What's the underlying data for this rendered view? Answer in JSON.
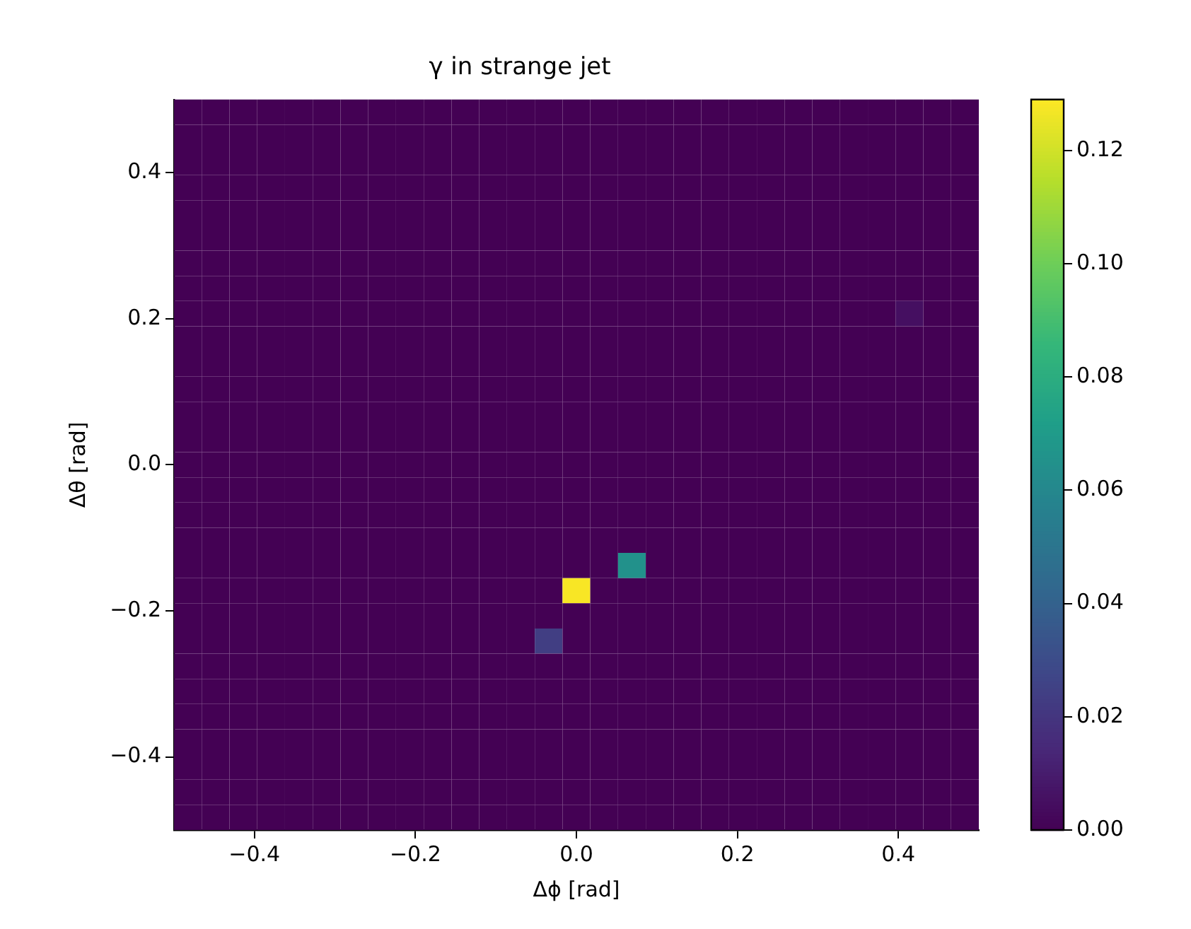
{
  "chart_data": {
    "type": "heatmap",
    "title": "γ in strange jet",
    "xlabel": "Δϕ [rad]",
    "ylabel": "Δθ [rad]",
    "xlim": [
      -0.5,
      0.5
    ],
    "ylim": [
      -0.5,
      0.5
    ],
    "xticks": [
      {
        "value": -0.4,
        "label": "−0.4"
      },
      {
        "value": -0.2,
        "label": "−0.2"
      },
      {
        "value": 0,
        "label": "0.0"
      },
      {
        "value": 0.2,
        "label": "0.2"
      },
      {
        "value": 0.4,
        "label": "0.4"
      }
    ],
    "yticks": [
      {
        "value": -0.4,
        "label": "−0.4"
      },
      {
        "value": -0.2,
        "label": "−0.2"
      },
      {
        "value": 0,
        "label": "0.0"
      },
      {
        "value": 0.2,
        "label": "0.2"
      },
      {
        "value": 0.4,
        "label": "0.4"
      }
    ],
    "clim": [
      0,
      0.129
    ],
    "cticks": [
      {
        "value": 0,
        "label": "0.00"
      },
      {
        "value": 0.02,
        "label": "0.02"
      },
      {
        "value": 0.04,
        "label": "0.04"
      },
      {
        "value": 0.06,
        "label": "0.06"
      },
      {
        "value": 0.08,
        "label": "0.08"
      },
      {
        "value": 0.1,
        "label": "0.10"
      },
      {
        "value": 0.12,
        "label": "0.12"
      }
    ],
    "cells": [
      [
        0,
        0,
        0,
        0,
        0,
        0,
        0,
        0,
        0,
        0,
        0,
        0,
        0,
        0,
        0,
        0,
        0,
        0,
        0,
        0,
        0,
        0,
        0,
        0,
        0,
        0,
        0,
        0,
        0
      ],
      [
        0,
        0,
        0,
        0,
        0,
        0,
        0,
        0,
        0,
        0,
        0,
        0,
        0,
        0,
        0,
        0,
        0,
        0,
        0,
        0,
        0,
        0,
        0,
        0,
        0,
        0,
        0,
        0,
        0
      ],
      [
        0,
        0,
        0,
        0,
        0,
        0,
        0,
        0,
        0,
        0,
        0,
        0,
        0,
        0,
        0,
        0,
        0,
        0,
        0,
        0,
        0,
        0,
        0,
        0,
        0,
        0,
        0,
        0,
        0
      ],
      [
        0,
        0,
        0,
        0,
        0,
        0,
        0,
        0,
        0,
        0,
        0,
        0,
        0,
        0,
        0,
        0,
        0,
        0,
        0,
        0,
        0,
        0,
        0,
        0,
        0,
        0,
        0,
        0,
        0
      ],
      [
        0,
        0,
        0,
        0,
        0,
        0,
        0,
        0,
        0,
        0,
        0,
        0,
        0,
        0,
        0,
        0,
        0,
        0,
        0,
        0,
        0,
        0,
        0,
        0,
        0,
        0,
        0,
        0,
        0
      ],
      [
        0,
        0,
        0,
        0,
        0,
        0,
        0,
        0,
        0,
        0,
        0,
        0,
        0,
        0,
        0,
        0,
        0,
        0,
        0,
        0,
        0,
        0,
        0,
        0,
        0,
        0,
        0,
        0,
        0
      ],
      [
        0,
        0,
        0,
        0,
        0,
        0,
        0,
        0,
        0,
        0,
        0,
        0,
        0,
        0,
        0,
        0,
        0,
        0,
        0,
        0,
        0,
        0,
        0,
        0,
        0,
        0,
        0,
        0,
        0
      ],
      [
        0,
        0,
        0,
        0,
        0,
        0,
        0,
        0,
        0,
        0,
        0,
        0,
        0,
        0,
        0,
        0,
        0,
        0,
        0,
        0,
        0,
        0,
        0,
        0,
        0,
        0,
        0,
        0,
        0
      ],
      [
        0,
        0,
        0,
        0,
        0,
        0,
        0,
        0,
        0,
        0,
        0,
        0,
        0,
        0,
        0,
        0,
        0,
        0,
        0,
        0,
        0,
        0,
        0,
        0,
        0,
        0,
        0.005,
        0,
        0
      ],
      [
        0,
        0,
        0,
        0,
        0,
        0,
        0,
        0,
        0,
        0,
        0,
        0,
        0,
        0,
        0,
        0,
        0,
        0,
        0,
        0,
        0,
        0,
        0,
        0,
        0,
        0,
        0,
        0,
        0
      ],
      [
        0,
        0,
        0,
        0,
        0,
        0,
        0,
        0,
        0,
        0,
        0,
        0,
        0,
        0,
        0,
        0,
        0,
        0,
        0,
        0,
        0,
        0,
        0,
        0,
        0,
        0,
        0,
        0,
        0
      ],
      [
        0,
        0,
        0,
        0,
        0,
        0,
        0,
        0,
        0,
        0,
        0,
        0,
        0,
        0,
        0,
        0,
        0,
        0,
        0,
        0,
        0,
        0,
        0,
        0,
        0,
        0,
        0,
        0,
        0
      ],
      [
        0,
        0,
        0,
        0,
        0,
        0,
        0,
        0,
        0,
        0,
        0,
        0,
        0,
        0,
        0,
        0,
        0,
        0,
        0,
        0,
        0,
        0,
        0,
        0,
        0,
        0,
        0,
        0,
        0
      ],
      [
        0,
        0,
        0,
        0,
        0,
        0,
        0,
        0,
        0,
        0,
        0,
        0,
        0,
        0,
        0,
        0,
        0,
        0,
        0,
        0,
        0,
        0,
        0,
        0,
        0,
        0,
        0,
        0,
        0
      ],
      [
        0,
        0,
        0,
        0,
        0,
        0,
        0,
        0,
        0,
        0,
        0,
        0,
        0,
        0,
        0,
        0,
        0,
        0,
        0,
        0,
        0,
        0,
        0,
        0,
        0,
        0,
        0,
        0,
        0
      ],
      [
        0,
        0,
        0,
        0,
        0,
        0,
        0,
        0,
        0,
        0,
        0,
        0,
        0,
        0,
        0,
        0,
        0,
        0,
        0,
        0,
        0,
        0,
        0,
        0,
        0,
        0,
        0,
        0,
        0
      ],
      [
        0,
        0,
        0,
        0,
        0,
        0,
        0,
        0,
        0,
        0,
        0,
        0,
        0,
        0,
        0,
        0,
        0,
        0,
        0,
        0,
        0,
        0,
        0,
        0,
        0,
        0,
        0,
        0,
        0
      ],
      [
        0,
        0,
        0,
        0,
        0,
        0,
        0,
        0,
        0,
        0,
        0,
        0,
        0,
        0,
        0,
        0,
        0,
        0,
        0,
        0,
        0,
        0,
        0,
        0,
        0,
        0,
        0,
        0,
        0
      ],
      [
        0,
        0,
        0,
        0,
        0,
        0,
        0,
        0,
        0,
        0,
        0,
        0,
        0,
        0,
        0,
        0,
        0.065,
        0,
        0,
        0,
        0,
        0,
        0,
        0,
        0,
        0,
        0,
        0,
        0
      ],
      [
        0,
        0,
        0,
        0,
        0,
        0,
        0,
        0,
        0,
        0,
        0,
        0,
        0,
        0,
        0.128,
        0,
        0,
        0,
        0,
        0,
        0,
        0,
        0,
        0,
        0,
        0,
        0,
        0,
        0
      ],
      [
        0,
        0,
        0,
        0,
        0,
        0,
        0,
        0,
        0,
        0,
        0,
        0,
        0,
        0,
        0,
        0,
        0,
        0,
        0,
        0,
        0,
        0,
        0,
        0,
        0,
        0,
        0,
        0,
        0
      ],
      [
        0,
        0,
        0,
        0,
        0,
        0,
        0,
        0,
        0,
        0,
        0,
        0,
        0,
        0.024,
        0,
        0,
        0,
        0,
        0,
        0,
        0,
        0,
        0,
        0,
        0,
        0,
        0,
        0,
        0
      ],
      [
        0,
        0,
        0,
        0,
        0,
        0,
        0,
        0,
        0,
        0,
        0,
        0,
        0,
        0,
        0,
        0,
        0,
        0,
        0,
        0,
        0,
        0,
        0,
        0,
        0,
        0,
        0,
        0,
        0
      ],
      [
        0,
        0,
        0,
        0,
        0,
        0,
        0,
        0,
        0,
        0,
        0,
        0,
        0,
        0,
        0,
        0,
        0,
        0,
        0,
        0,
        0,
        0,
        0,
        0,
        0,
        0,
        0,
        0,
        0
      ],
      [
        0,
        0,
        0,
        0,
        0,
        0,
        0,
        0,
        0,
        0,
        0,
        0,
        0,
        0,
        0,
        0,
        0,
        0,
        0,
        0,
        0,
        0,
        0,
        0,
        0,
        0,
        0,
        0,
        0
      ],
      [
        0,
        0,
        0,
        0,
        0,
        0,
        0,
        0,
        0,
        0,
        0,
        0,
        0,
        0,
        0,
        0,
        0,
        0,
        0,
        0,
        0,
        0,
        0,
        0,
        0,
        0,
        0,
        0,
        0
      ],
      [
        0,
        0,
        0,
        0,
        0,
        0,
        0,
        0,
        0,
        0,
        0,
        0,
        0,
        0,
        0,
        0,
        0,
        0,
        0,
        0,
        0,
        0,
        0,
        0,
        0,
        0,
        0,
        0,
        0
      ],
      [
        0,
        0,
        0,
        0,
        0,
        0,
        0,
        0,
        0,
        0,
        0,
        0,
        0,
        0,
        0,
        0,
        0,
        0,
        0,
        0,
        0,
        0,
        0,
        0,
        0,
        0,
        0,
        0,
        0
      ],
      [
        0,
        0,
        0,
        0,
        0,
        0,
        0,
        0,
        0,
        0,
        0,
        0,
        0,
        0,
        0,
        0,
        0,
        0,
        0,
        0,
        0,
        0,
        0,
        0,
        0,
        0,
        0,
        0,
        0
      ]
    ]
  }
}
